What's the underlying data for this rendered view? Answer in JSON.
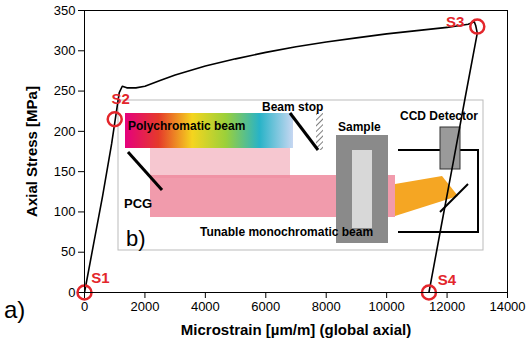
{
  "chart_data": {
    "type": "line",
    "x_label": "Microstrain [µm/m] (global axial)",
    "y_label": "Axial Stress [MPa]",
    "panel_label": "a)",
    "xlim": [
      0,
      14000
    ],
    "ylim": [
      0,
      350
    ],
    "xticks": [
      0,
      2000,
      4000,
      6000,
      8000,
      10000,
      12000,
      14000
    ],
    "yticks": [
      0,
      50,
      100,
      150,
      200,
      250,
      300,
      350
    ],
    "series": [
      {
        "type": "line",
        "color": "#000000",
        "x": [
          0,
          300,
          600,
          900,
          1150,
          1250,
          1400,
          1700,
          2000,
          2500,
          3000,
          4000,
          5000,
          6000,
          7000,
          8000,
          9000,
          10000,
          11000,
          12000,
          12700,
          12900,
          12950,
          13000,
          12600,
          12200,
          11800,
          11400
        ],
        "values": [
          0,
          60,
          120,
          185,
          248,
          256,
          254,
          254,
          256,
          263,
          270,
          281,
          290,
          298,
          305,
          311,
          316,
          321,
          325,
          329,
          333,
          336,
          331,
          322,
          242,
          161,
          81,
          0
        ]
      },
      {
        "type": "scatter",
        "marker": "circle",
        "color": "#e3262b",
        "x": [
          0,
          1000,
          13000,
          11400
        ],
        "values": [
          0,
          215,
          330,
          0
        ],
        "labels": [
          "S1",
          "S2",
          "S3",
          "S4"
        ]
      }
    ],
    "inset": {
      "panel_label": "b)",
      "polychromatic": "Polychromatic beam",
      "beam_stop": "Beam stop",
      "grating": "PCG",
      "sample": "Sample",
      "detector": "CCD Detector",
      "monochromatic": "Tunable monochromatic beam"
    }
  }
}
